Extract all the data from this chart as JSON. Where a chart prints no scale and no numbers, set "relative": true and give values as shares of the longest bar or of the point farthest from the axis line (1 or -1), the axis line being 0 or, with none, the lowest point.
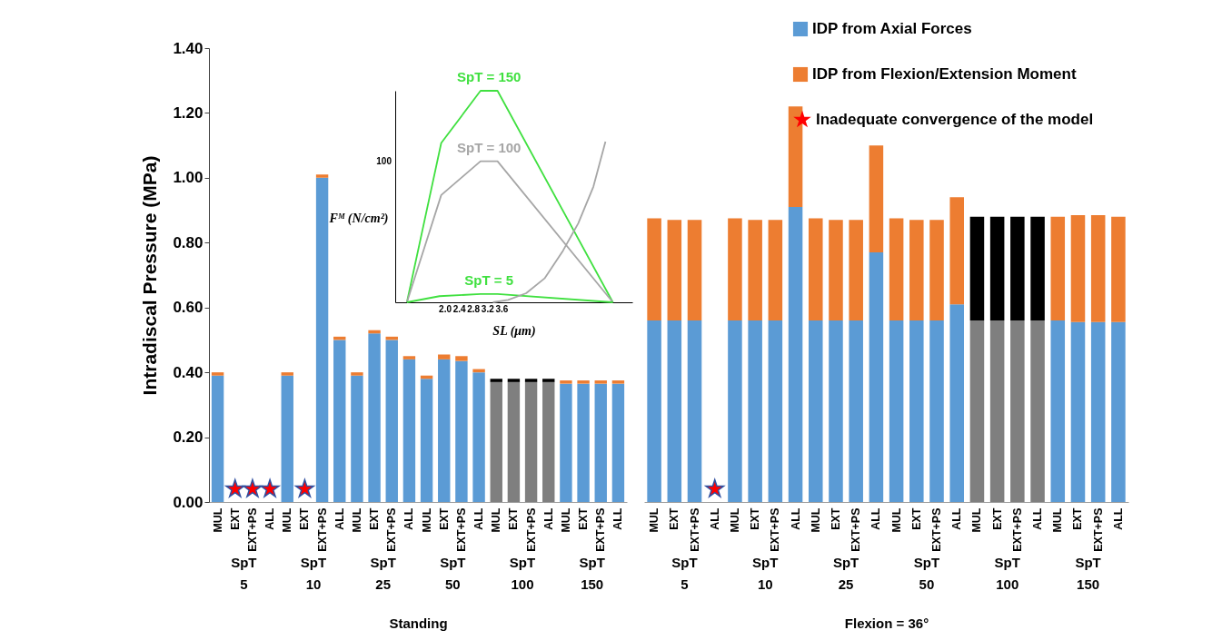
{
  "chart_data": [
    {
      "type": "bar",
      "stacked": true,
      "ylabel": "Intradiscal Pressure (MPa)",
      "xlabel": "Standing",
      "categories": [
        "MUL",
        "EXT",
        "EXT+PS",
        "ALL",
        "MUL",
        "EXT",
        "EXT+PS",
        "ALL",
        "MUL",
        "EXT",
        "EXT+PS",
        "ALL",
        "MUL",
        "EXT",
        "EXT+PS",
        "ALL",
        "MUL",
        "EXT",
        "EXT+PS",
        "ALL",
        "MUL",
        "EXT",
        "EXT+PS",
        "ALL"
      ],
      "series": [
        {
          "color": "#5b9bd5",
          "values": [
            0.39,
            null,
            null,
            null,
            0.39,
            null,
            1.0,
            0.5,
            0.39,
            0.52,
            0.5,
            0.44,
            0.38,
            0.44,
            0.435,
            0.4,
            null,
            null,
            null,
            null,
            0.365,
            0.365,
            0.365,
            0.365
          ]
        },
        {
          "color": "#ed7d31",
          "values": [
            0.01,
            null,
            null,
            null,
            0.01,
            null,
            0.01,
            0.01,
            0.01,
            0.01,
            0.01,
            0.01,
            0.01,
            0.015,
            0.015,
            0.01,
            null,
            null,
            null,
            null,
            0.01,
            0.01,
            0.01,
            0.01
          ]
        },
        {
          "color": "#7f7f7f",
          "values": [
            null,
            null,
            null,
            null,
            null,
            null,
            null,
            null,
            null,
            null,
            null,
            null,
            null,
            null,
            null,
            null,
            0.37,
            0.37,
            0.37,
            0.37,
            null,
            null,
            null,
            null
          ]
        },
        {
          "color": "#000000",
          "values": [
            null,
            null,
            null,
            null,
            null,
            null,
            null,
            null,
            null,
            null,
            null,
            null,
            null,
            null,
            null,
            null,
            0.01,
            0.01,
            0.01,
            0.01,
            null,
            null,
            null,
            null
          ]
        },
        {
          "type": "scatter",
          "marker": "star",
          "color": "#ff0000",
          "values": [
            null,
            0.04,
            0.04,
            0.04,
            null,
            0.04,
            null,
            null,
            null,
            null,
            null,
            null,
            null,
            null,
            null,
            null,
            null,
            null,
            null,
            null,
            null,
            null,
            null,
            null
          ]
        }
      ],
      "ylim": [
        0,
        1.4
      ],
      "yticks": [
        {
          "value": 0,
          "label": "0.00"
        },
        {
          "value": 0.2,
          "label": "0.20"
        },
        {
          "value": 0.4,
          "label": "0.40"
        },
        {
          "value": 0.6,
          "label": "0.60"
        },
        {
          "value": 0.8,
          "label": "0.80"
        },
        {
          "value": 1.0,
          "label": "1.00"
        },
        {
          "value": 1.2,
          "label": "1.20"
        },
        {
          "value": 1.4,
          "label": "1.40"
        }
      ],
      "annotations": [
        "SpT\n5",
        "SpT\n10",
        "SpT\n25",
        "SpT\n50",
        "SpT\n100",
        "SpT\n150"
      ]
    },
    {
      "type": "bar",
      "stacked": true,
      "xlabel": "Flexion = 36°",
      "tick_labels": "x",
      "legend": "top right",
      "categories": [
        "MUL",
        "EXT",
        "EXT+PS",
        "ALL",
        "MUL",
        "EXT",
        "EXT+PS",
        "ALL",
        "MUL",
        "EXT",
        "EXT+PS",
        "ALL",
        "MUL",
        "EXT",
        "EXT+PS",
        "ALL",
        "MUL",
        "EXT",
        "EXT+PS",
        "ALL",
        "MUL",
        "EXT",
        "EXT+PS",
        "ALL"
      ],
      "series": [
        {
          "name": "IDP from Axial Forces",
          "color": "#5b9bd5",
          "values": [
            0.56,
            0.56,
            0.56,
            null,
            0.56,
            0.56,
            0.56,
            0.91,
            0.56,
            0.56,
            0.56,
            0.77,
            0.56,
            0.56,
            0.56,
            0.61,
            null,
            null,
            null,
            null,
            0.56,
            0.555,
            0.555,
            0.555
          ]
        },
        {
          "name": "IDP from Flexion/Extension Moment",
          "color": "#ed7d31",
          "values": [
            0.315,
            0.31,
            0.31,
            null,
            0.315,
            0.31,
            0.31,
            0.31,
            0.315,
            0.31,
            0.31,
            0.33,
            0.315,
            0.31,
            0.31,
            0.33,
            null,
            null,
            null,
            null,
            0.32,
            0.33,
            0.33,
            0.325
          ]
        },
        {
          "color": "#7f7f7f",
          "values": [
            null,
            null,
            null,
            null,
            null,
            null,
            null,
            null,
            null,
            null,
            null,
            null,
            null,
            null,
            null,
            null,
            0.56,
            0.56,
            0.56,
            0.56,
            null,
            null,
            null,
            null
          ]
        },
        {
          "color": "#000000",
          "values": [
            null,
            null,
            null,
            null,
            null,
            null,
            null,
            null,
            null,
            null,
            null,
            null,
            null,
            null,
            null,
            null,
            0.32,
            0.32,
            0.32,
            0.32,
            null,
            null,
            null,
            null
          ]
        },
        {
          "name": "Inadequate convergence of the model",
          "type": "scatter",
          "marker": "star",
          "color": "#ff0000",
          "values": [
            null,
            null,
            null,
            0.04,
            null,
            null,
            null,
            null,
            null,
            null,
            null,
            null,
            null,
            null,
            null,
            null,
            null,
            null,
            null,
            null,
            null,
            null,
            null,
            null
          ]
        }
      ],
      "ylim": [
        0,
        1.4
      ],
      "annotations": [
        "SpT\n5",
        "SpT\n10",
        "SpT\n25",
        "SpT\n50",
        "SpT\n100",
        "SpT\n150"
      ]
    },
    {
      "type": "line",
      "relative": true,
      "xlabel": "SL (μm)",
      "ylabel": "Fᴹ (N/cm²)",
      "series": [
        {
          "name": "SpT = 150",
          "color": "#40e040",
          "x": [
            0.93,
            1.9,
            3.01,
            3.49,
            6.75
          ],
          "values": [
            0,
            0.753,
            1,
            1,
            0
          ]
        },
        {
          "name": "SpT = 100",
          "color": "#a6a6a6",
          "x": [
            0.93,
            1.9,
            3.01,
            3.49,
            6.75
          ],
          "values": [
            0,
            0.507,
            0.667,
            0.667,
            0
          ]
        },
        {
          "name": "SpT = 5",
          "color": "#40e040",
          "x": [
            0.93,
            1.85,
            3.01,
            3.49,
            6.75
          ],
          "values": [
            0,
            0.029,
            0.039,
            0.039,
            0
          ]
        },
        {
          "color": "#a6a6a6",
          "x": [
            3.36,
            3.79,
            4.3,
            4.82,
            5.34,
            5.77,
            6.2,
            6.54
          ],
          "values": [
            0,
            0.011,
            0.043,
            0.113,
            0.244,
            0.373,
            0.547,
            0.76
          ]
        }
      ],
      "xlim": [
        0.6,
        7.3
      ],
      "xticks": [
        {
          "value": 2.0,
          "label": "2.0"
        },
        {
          "value": 2.4,
          "label": "2.4"
        },
        {
          "value": 2.8,
          "label": "2.8"
        },
        {
          "value": 3.2,
          "label": "3.2"
        },
        {
          "value": 3.6,
          "label": "3.6"
        }
      ],
      "annotations": [
        "100"
      ]
    }
  ]
}
